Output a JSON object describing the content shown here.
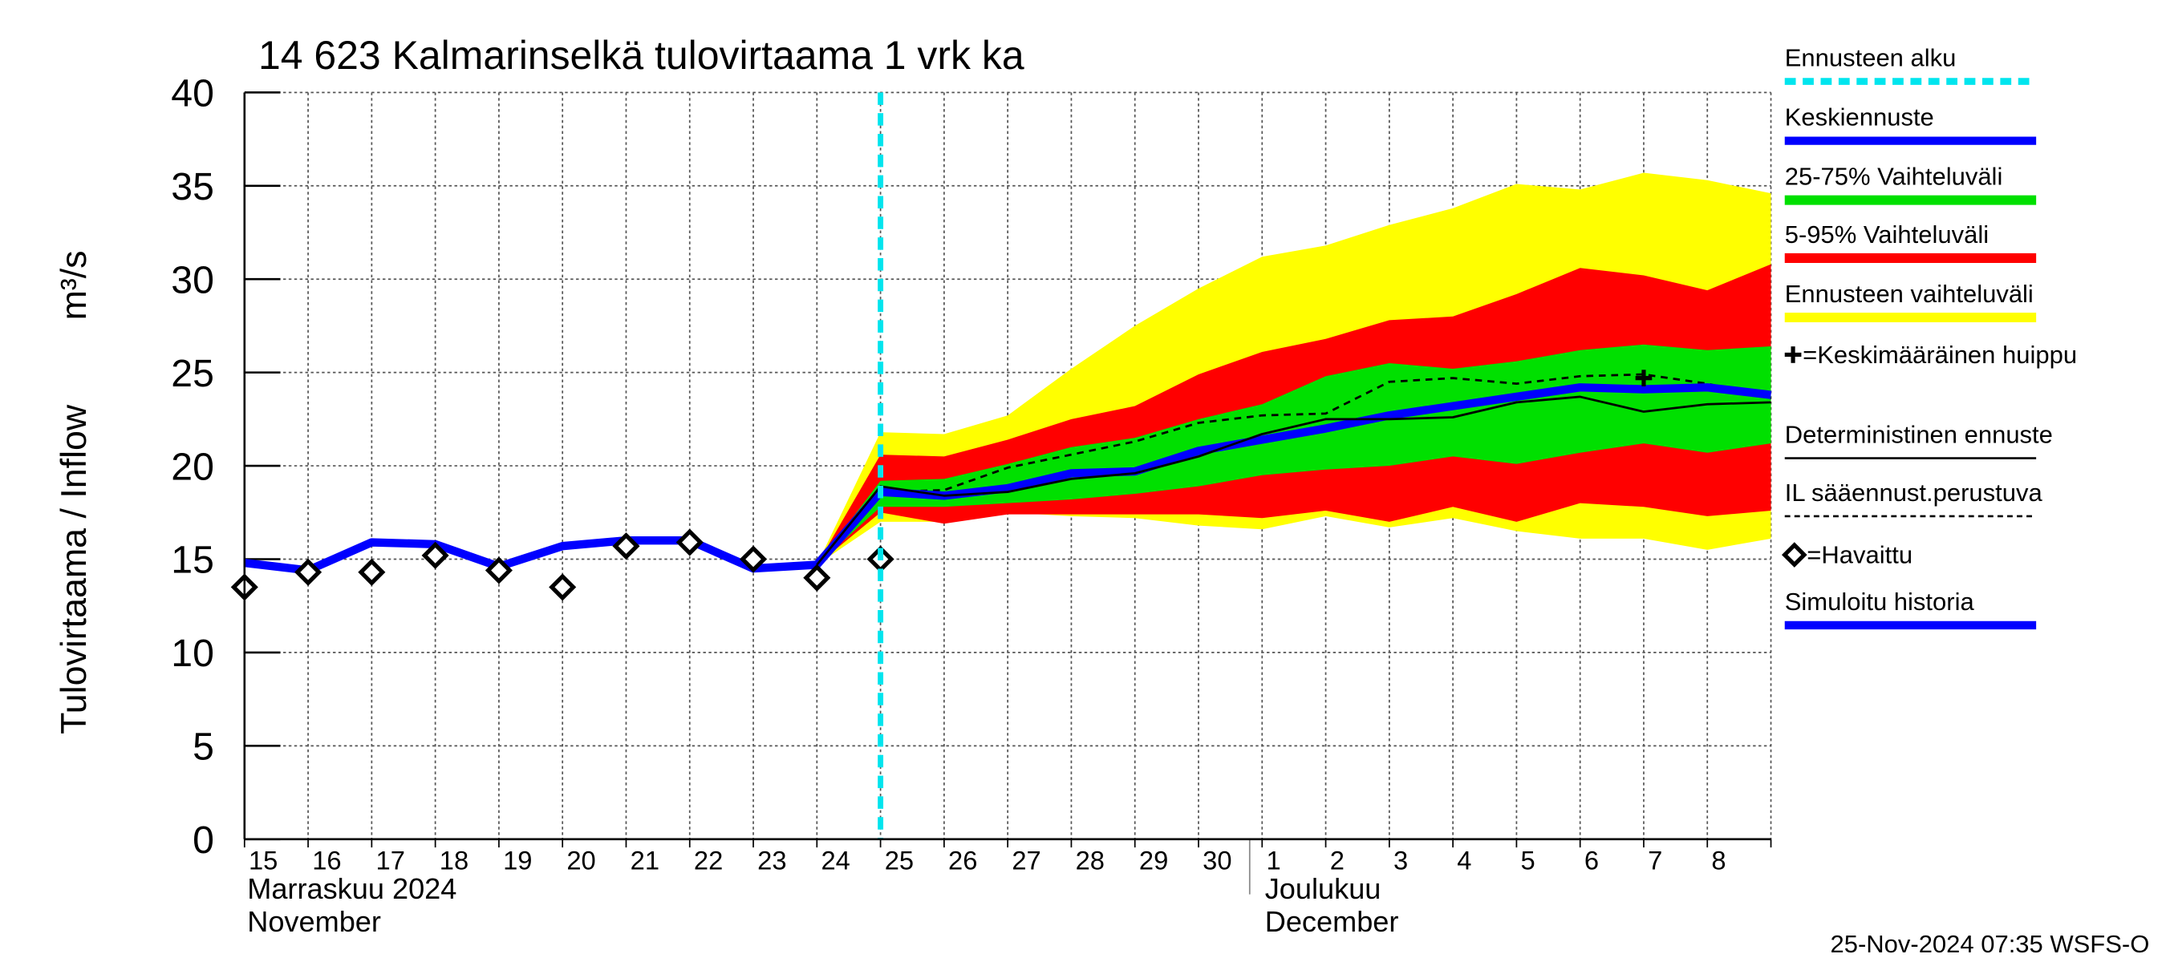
{
  "chart_data": {
    "type": "line",
    "title": "14 623 Kalmarinselkä tulovirtaama 1 vrk ka",
    "y_label": "Tulovirtaama / Inflow",
    "y_unit": "m³/s",
    "month_labels": [
      {
        "fi": "Marraskuu 2024",
        "en": "November",
        "at": "15"
      },
      {
        "fi": "Joulukuu",
        "en": "December",
        "at": "1"
      }
    ],
    "footer": "25-Nov-2024 07:35 WSFS-O",
    "categories": [
      "15",
      "16",
      "17",
      "18",
      "19",
      "20",
      "21",
      "22",
      "23",
      "24",
      "25",
      "26",
      "27",
      "28",
      "29",
      "30",
      "1",
      "2",
      "3",
      "4",
      "5",
      "6",
      "7",
      "8",
      null
    ],
    "ylim": [
      0,
      40
    ],
    "yticks": [
      0,
      5,
      10,
      15,
      20,
      25,
      30,
      35,
      40
    ],
    "grid": true,
    "forecast_start": {
      "name": "Ennusteen alku",
      "color": "#00e5ee",
      "at": "25"
    },
    "bands": [
      {
        "name": "Ennusteen vaihteluväli",
        "color": "#ffff00",
        "upper": [
          null,
          null,
          null,
          null,
          null,
          null,
          null,
          null,
          null,
          14.7,
          21.8,
          21.7,
          22.7,
          25.2,
          27.5,
          29.5,
          31.2,
          31.8,
          32.9,
          33.8,
          35.1,
          34.8,
          35.7,
          35.3,
          34.6
        ],
        "lower": [
          null,
          null,
          null,
          null,
          null,
          null,
          null,
          null,
          null,
          14.7,
          17.0,
          17.0,
          17.5,
          17.3,
          17.2,
          16.8,
          16.6,
          17.3,
          16.7,
          17.2,
          16.5,
          16.1,
          16.1,
          15.5,
          16.1
        ]
      },
      {
        "name": "5-95% Vaihteluväli",
        "color": "#ff0000",
        "upper": [
          null,
          null,
          null,
          null,
          null,
          null,
          null,
          null,
          null,
          14.7,
          20.6,
          20.5,
          21.4,
          22.5,
          23.2,
          24.9,
          26.1,
          26.8,
          27.8,
          28.0,
          29.2,
          30.6,
          30.2,
          29.4,
          30.8
        ],
        "lower": [
          null,
          null,
          null,
          null,
          null,
          null,
          null,
          null,
          null,
          14.7,
          17.5,
          16.9,
          17.4,
          17.4,
          17.4,
          17.4,
          17.2,
          17.6,
          17.0,
          17.8,
          17.0,
          18.0,
          17.8,
          17.3,
          17.6
        ]
      },
      {
        "name": "25-75% Vaihteluväli",
        "color": "#00e000",
        "upper": [
          null,
          null,
          null,
          null,
          null,
          null,
          null,
          null,
          null,
          14.7,
          19.2,
          19.3,
          20.1,
          21.0,
          21.5,
          22.5,
          23.3,
          24.8,
          25.5,
          25.2,
          25.6,
          26.2,
          26.5,
          26.2,
          26.4
        ],
        "lower": [
          null,
          null,
          null,
          null,
          null,
          null,
          null,
          null,
          null,
          14.7,
          17.8,
          17.8,
          18.0,
          18.2,
          18.5,
          18.9,
          19.5,
          19.8,
          20.0,
          20.5,
          20.1,
          20.7,
          21.2,
          20.7,
          21.2
        ]
      }
    ],
    "series": [
      {
        "name": "IL sääennust.perustuva",
        "color": "#000000",
        "style": "dashed",
        "values": [
          null,
          null,
          null,
          null,
          null,
          null,
          null,
          null,
          null,
          14.7,
          18.6,
          18.7,
          19.9,
          20.6,
          21.3,
          22.3,
          22.7,
          22.8,
          24.5,
          24.7,
          24.4,
          24.8,
          24.9,
          24.4,
          23.6
        ]
      },
      {
        "name": "Simuloitu historia",
        "color": "#0000ff",
        "style": "thick",
        "values": [
          14.8,
          14.4,
          15.9,
          15.8,
          14.6,
          15.7,
          16.0,
          16.0,
          14.5,
          14.7,
          null,
          null,
          null,
          null,
          null,
          null,
          null,
          null,
          null,
          null,
          null,
          null,
          null,
          null,
          null
        ]
      },
      {
        "name": "Keskiennuste",
        "color": "#0000ff",
        "style": "thick",
        "values": [
          null,
          null,
          null,
          null,
          null,
          null,
          null,
          null,
          null,
          14.7,
          18.6,
          18.4,
          18.8,
          19.6,
          19.7,
          20.8,
          21.4,
          22.0,
          22.7,
          23.2,
          23.7,
          24.2,
          24.1,
          24.2,
          23.8
        ]
      },
      {
        "name": "Deterministinen ennuste",
        "color": "#000000",
        "style": "solid",
        "values": [
          null,
          null,
          null,
          null,
          null,
          null,
          null,
          null,
          null,
          14.7,
          18.9,
          18.4,
          18.6,
          19.3,
          19.6,
          20.5,
          21.7,
          22.5,
          22.5,
          22.6,
          23.4,
          23.7,
          22.9,
          23.3,
          23.4
        ]
      },
      {
        "name": "=Havaittu",
        "color": "#000000",
        "style": "diamond",
        "values": [
          13.5,
          14.3,
          14.3,
          15.2,
          14.4,
          13.5,
          15.7,
          15.9,
          15.0,
          14.0,
          15.0,
          null,
          null,
          null,
          null,
          null,
          null,
          null,
          null,
          null,
          null,
          null,
          null,
          null,
          null
        ]
      }
    ],
    "peak": {
      "name": "=Keskimääräinen huippu",
      "at": "7",
      "value": 24.7
    }
  }
}
